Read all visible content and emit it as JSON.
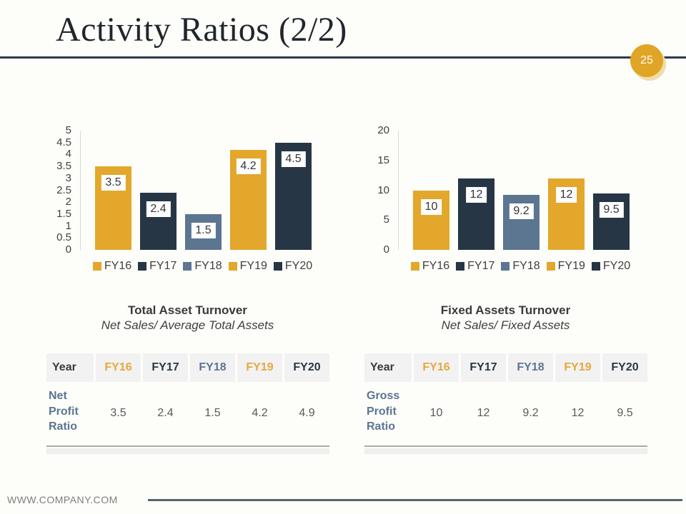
{
  "slide": {
    "title": "Activity Ratios (2/2)",
    "page_number": "25",
    "footer": "WWW.COMPANY.COM"
  },
  "colors": {
    "gold": "#e2a72b",
    "navy": "#273645",
    "slate": "#5c7591",
    "gold_text": "#e5a93c",
    "dark_text": "#2c3845",
    "slate_text": "#5c7591",
    "year_text": "#3b3b3b",
    "value_text": "#595959"
  },
  "chart_data": [
    {
      "type": "bar",
      "title": "Total Asset Turnover",
      "subtitle": "Net Sales/ Average Total Assets",
      "categories": [
        "FY16",
        "FY17",
        "FY18",
        "FY19",
        "FY20"
      ],
      "values": [
        3.5,
        2.4,
        1.5,
        4.2,
        4.5
      ],
      "value_labels": [
        "3.5",
        "2.4",
        "1.5",
        "4.2",
        "4.5"
      ],
      "bar_colors": [
        "gold",
        "navy",
        "slate",
        "gold",
        "navy"
      ],
      "ylim": [
        0,
        5
      ],
      "ytick_labels": [
        "5",
        "4.5",
        "4",
        "3.5",
        "3",
        "2.5",
        "2",
        "1.5",
        "1",
        "0.5",
        "0"
      ],
      "grid": false,
      "legend_position": "bottom"
    },
    {
      "type": "bar",
      "title": "Fixed Assets Turnover",
      "subtitle": "Net Sales/ Fixed Assets",
      "categories": [
        "FY16",
        "FY17",
        "FY18",
        "FY19",
        "FY20"
      ],
      "values": [
        10,
        12,
        9.2,
        12,
        9.5
      ],
      "value_labels": [
        "10",
        "12",
        "9.2",
        "12",
        "9.5"
      ],
      "bar_colors": [
        "gold",
        "navy",
        "slate",
        "gold",
        "navy"
      ],
      "ylim": [
        0,
        20
      ],
      "ytick_labels": [
        "20",
        "15",
        "10",
        "5",
        "0"
      ],
      "grid": false,
      "legend_position": "bottom"
    }
  ],
  "tables": [
    {
      "columns": [
        "Year",
        "FY16",
        "FY17",
        "FY18",
        "FY19",
        "FY20"
      ],
      "header_colors": [
        "year_text",
        "gold_text",
        "dark_text",
        "slate_text",
        "gold_text",
        "dark_text"
      ],
      "row_label": "Net Profit Ratio",
      "values": [
        "3.5",
        "2.4",
        "1.5",
        "4.2",
        "4.9"
      ]
    },
    {
      "columns": [
        "Year",
        "FY16",
        "FY17",
        "FY18",
        "FY19",
        "FY20"
      ],
      "header_colors": [
        "year_text",
        "gold_text",
        "dark_text",
        "slate_text",
        "gold_text",
        "dark_text"
      ],
      "row_label": "Gross Profit Ratio",
      "values": [
        "10",
        "12",
        "9.2",
        "12",
        "9.5"
      ]
    }
  ]
}
